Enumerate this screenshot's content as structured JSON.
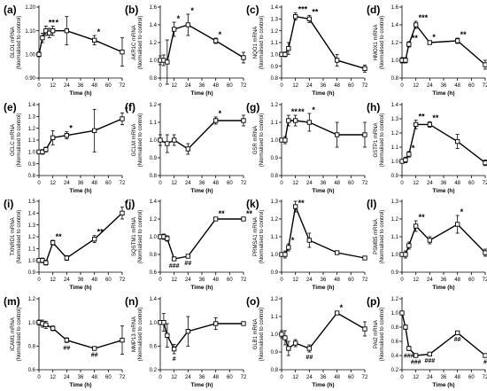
{
  "figure": {
    "xlabel": "Time (h)",
    "ylabel_unit": "(Normalised to control)"
  },
  "chart_data": [
    {
      "panel": "(a)",
      "type": "line",
      "ylabel": "GLO1 mRNA",
      "ylim": [
        0.9,
        1.2
      ],
      "yticks": [
        0.9,
        1.0,
        1.1,
        1.2
      ],
      "yticklabels": [
        "0.90",
        "1.00",
        "1.10",
        "1.20"
      ],
      "xticks": [
        0,
        12,
        24,
        36,
        48,
        60,
        72
      ],
      "x": [
        0,
        3,
        6,
        9,
        12,
        24,
        48,
        72
      ],
      "y": [
        1.0,
        1.07,
        1.1,
        1.09,
        1.1,
        1.1,
        1.06,
        1.01
      ],
      "err": [
        0.01,
        0.02,
        0.02,
        0.02,
        0.02,
        0.06,
        0.02,
        0.06
      ],
      "annotations": [
        {
          "x": 6,
          "text": "**"
        },
        {
          "x": 12,
          "text": "*"
        },
        {
          "x": 48,
          "text": "*"
        }
      ]
    },
    {
      "panel": "(b)",
      "type": "line",
      "ylabel": "AKR1C mRNA",
      "ylim": [
        0.8,
        1.6
      ],
      "yticks": [
        0.8,
        1.0,
        1.2,
        1.4,
        1.6
      ],
      "yticklabels": [
        "0.8",
        "1.0",
        "1.2",
        "1.4",
        "1.6"
      ],
      "xticks": [
        0,
        12,
        24,
        36,
        48,
        60,
        72
      ],
      "x": [
        0,
        3,
        6,
        12,
        24,
        48,
        72
      ],
      "y": [
        1.0,
        1.0,
        0.98,
        1.35,
        1.4,
        1.22,
        1.03
      ],
      "err": [
        0.05,
        0.06,
        0.25,
        0.08,
        0.12,
        0.03,
        0.06
      ],
      "annotations": [
        {
          "x": 12,
          "text": "*"
        },
        {
          "x": 24,
          "text": "*"
        },
        {
          "x": 48,
          "text": "*"
        }
      ]
    },
    {
      "panel": "(c)",
      "type": "line",
      "ylabel": "NQO1 mRNA",
      "ylim": [
        0.8,
        1.4
      ],
      "yticks": [
        0.8,
        0.9,
        1.0,
        1.1,
        1.2,
        1.3,
        1.4
      ],
      "yticklabels": [
        "0.8",
        "0.9",
        "1.0",
        "1.1",
        "1.2",
        "1.3",
        "1.4"
      ],
      "xticks": [
        0,
        12,
        24,
        36,
        48,
        60,
        72
      ],
      "x": [
        0,
        3,
        6,
        12,
        24,
        48,
        72
      ],
      "y": [
        1.0,
        1.0,
        1.05,
        1.32,
        1.3,
        0.95,
        0.88
      ],
      "err": [
        0.01,
        0.02,
        0.05,
        0.03,
        0.03,
        0.05,
        0.03
      ],
      "annotations": [
        {
          "x": 12,
          "text": "***"
        },
        {
          "x": 24,
          "text": "**"
        }
      ]
    },
    {
      "panel": "(d)",
      "type": "line",
      "ylabel": "HMOX1 mRNA",
      "ylim": [
        0.8,
        1.6
      ],
      "yticks": [
        0.8,
        1.0,
        1.2,
        1.4,
        1.6
      ],
      "yticklabels": [
        "0.8",
        "1.0",
        "1.2",
        "1.4",
        "1.6"
      ],
      "xticks": [
        0,
        12,
        24,
        36,
        48,
        60,
        72
      ],
      "x": [
        0,
        3,
        6,
        12,
        24,
        48,
        72
      ],
      "y": [
        1.0,
        1.0,
        1.18,
        1.4,
        1.2,
        1.22,
        0.95
      ],
      "err": [
        0.03,
        0.03,
        0.03,
        0.04,
        0.02,
        0.03,
        0.05
      ],
      "annotations": [
        {
          "x": 6,
          "text": "**"
        },
        {
          "x": 12,
          "text": "***"
        },
        {
          "x": 24,
          "text": "*"
        },
        {
          "x": 48,
          "text": "**"
        }
      ]
    },
    {
      "panel": "(e)",
      "type": "line",
      "ylabel": "GCLC mRNA",
      "ylim": [
        0.8,
        1.4
      ],
      "yticks": [
        0.8,
        0.9,
        1.0,
        1.1,
        1.2,
        1.3,
        1.4
      ],
      "yticklabels": [
        "0.8",
        "0.9",
        "1.0",
        "1.1",
        "1.2",
        "1.3",
        "1.4"
      ],
      "xticks": [
        0,
        12,
        24,
        36,
        48,
        60,
        72
      ],
      "x": [
        0,
        3,
        6,
        12,
        24,
        48,
        72
      ],
      "y": [
        1.0,
        1.0,
        1.02,
        1.12,
        1.14,
        1.18,
        1.28
      ],
      "err": [
        0.01,
        0.02,
        0.02,
        0.06,
        0.03,
        0.18,
        0.05
      ],
      "annotations": [
        {
          "x": 24,
          "text": "*"
        },
        {
          "x": 72,
          "text": "*"
        }
      ]
    },
    {
      "panel": "(f)",
      "type": "line",
      "ylabel": "GCLM mRNA",
      "ylim": [
        0.8,
        1.2
      ],
      "yticks": [
        0.8,
        0.9,
        1.0,
        1.1,
        1.2
      ],
      "yticklabels": [
        "0.8",
        "0.9",
        "1.0",
        "1.1",
        "1.2"
      ],
      "xticks": [
        0,
        12,
        24,
        36,
        48,
        60,
        72
      ],
      "x": [
        0,
        6,
        12,
        24,
        48,
        72
      ],
      "y": [
        1.0,
        0.98,
        1.0,
        0.95,
        1.11,
        1.11
      ],
      "err": [
        0.03,
        0.05,
        0.03,
        0.03,
        0.02,
        0.03
      ],
      "annotations": [
        {
          "x": 48,
          "text": "*"
        }
      ]
    },
    {
      "panel": "(g)",
      "type": "line",
      "ylabel": "GSR mRNA",
      "ylim": [
        0.8,
        1.2
      ],
      "yticks": [
        0.8,
        0.9,
        1.0,
        1.1,
        1.2
      ],
      "yticklabels": [
        "0.8",
        "0.9",
        "1.0",
        "1.1",
        "1.2"
      ],
      "xticks": [
        0,
        12,
        24,
        36,
        48,
        60,
        72
      ],
      "x": [
        0,
        3,
        6,
        12,
        24,
        48,
        72
      ],
      "y": [
        1.0,
        1.0,
        1.11,
        1.11,
        1.1,
        1.03,
        1.03
      ],
      "err": [
        0.01,
        0.02,
        0.03,
        0.03,
        0.05,
        0.07,
        0.07
      ],
      "annotations": [
        {
          "x": 6,
          "text": "**"
        },
        {
          "x": 12,
          "text": "**"
        },
        {
          "x": 24,
          "text": "*"
        }
      ]
    },
    {
      "panel": "(h)",
      "type": "line",
      "ylabel": "GSTP1 mRNA",
      "ylim": [
        0.9,
        1.4
      ],
      "yticks": [
        0.9,
        1.0,
        1.1,
        1.2,
        1.3,
        1.4
      ],
      "yticklabels": [
        "0.9",
        "1.0",
        "1.1",
        "1.2",
        "1.3",
        "1.4"
      ],
      "xticks": [
        0,
        12,
        24,
        36,
        48,
        60,
        72
      ],
      "x": [
        0,
        3,
        6,
        12,
        24,
        48,
        72
      ],
      "y": [
        1.0,
        1.01,
        1.05,
        1.26,
        1.26,
        1.14,
        0.99
      ],
      "err": [
        0.01,
        0.02,
        0.02,
        0.03,
        0.02,
        0.05,
        0.02
      ],
      "annotations": [
        {
          "x": 6,
          "text": "*"
        },
        {
          "x": 12,
          "text": "**"
        },
        {
          "x": 24,
          "text": "**"
        }
      ]
    },
    {
      "panel": "(i)",
      "type": "line",
      "ylabel": "TXNRD1 mRNA",
      "ylim": [
        0.9,
        1.5
      ],
      "yticks": [
        0.9,
        1.0,
        1.1,
        1.2,
        1.3,
        1.4,
        1.5
      ],
      "yticklabels": [
        "0.9",
        "1.0",
        "1.1",
        "1.2",
        "1.3",
        "1.4",
        "1.5"
      ],
      "xticks": [
        0,
        12,
        24,
        36,
        48,
        60,
        72
      ],
      "x": [
        0,
        3,
        6,
        12,
        24,
        48,
        72
      ],
      "y": [
        1.0,
        1.0,
        0.98,
        1.15,
        1.02,
        1.18,
        1.4
      ],
      "err": [
        0.01,
        0.02,
        0.02,
        0.02,
        0.02,
        0.03,
        0.05
      ],
      "annotations": [
        {
          "x": 12,
          "text": "**"
        },
        {
          "x": 48,
          "text": "**"
        },
        {
          "x": 72,
          "text": "*"
        }
      ]
    },
    {
      "panel": "(j)",
      "type": "line",
      "ylabel": "SQSTM1 mRNA",
      "ylim": [
        0.6,
        1.4
      ],
      "yticks": [
        0.6,
        0.8,
        1.0,
        1.2,
        1.4
      ],
      "yticklabels": [
        "0.6",
        "0.8",
        "1.0",
        "1.2",
        "1.4"
      ],
      "xticks": [
        0,
        12,
        24,
        36,
        48,
        60,
        72
      ],
      "x": [
        0,
        3,
        6,
        12,
        24,
        48,
        72
      ],
      "y": [
        1.0,
        1.0,
        0.98,
        0.75,
        0.78,
        1.2,
        1.2
      ],
      "err": [
        0.01,
        0.03,
        0.03,
        0.02,
        0.02,
        0.02,
        0.02
      ],
      "annotations": [
        {
          "x": 12,
          "text": "###"
        },
        {
          "x": 24,
          "text": "##"
        },
        {
          "x": 48,
          "text": "**"
        },
        {
          "x": 72,
          "text": "**"
        }
      ]
    },
    {
      "panel": "(k)",
      "type": "line",
      "ylabel": "PRMSA1 mRNA",
      "ylim": [
        0.9,
        1.3
      ],
      "yticks": [
        0.9,
        1.0,
        1.1,
        1.2,
        1.3
      ],
      "yticklabels": [
        "0.9",
        "1.0",
        "1.1",
        "1.2",
        "1.3"
      ],
      "xticks": [
        0,
        12,
        24,
        36,
        48,
        60,
        72
      ],
      "x": [
        0,
        3,
        6,
        12,
        24,
        48,
        72
      ],
      "y": [
        1.0,
        1.0,
        1.04,
        1.27,
        1.08,
        1.01,
        0.98
      ],
      "err": [
        0.01,
        0.02,
        0.02,
        0.03,
        0.04,
        0.01,
        0.01
      ],
      "annotations": [
        {
          "x": 6,
          "text": "*"
        },
        {
          "x": 12,
          "text": "**"
        }
      ]
    },
    {
      "panel": "(l)",
      "type": "line",
      "ylabel": "PSMB5 mRNA",
      "ylim": [
        0.9,
        1.3
      ],
      "yticks": [
        0.9,
        1.0,
        1.1,
        1.2,
        1.3
      ],
      "yticklabels": [
        "0.9",
        "1.0",
        "1.1",
        "1.2",
        "1.3"
      ],
      "xticks": [
        0,
        12,
        24,
        36,
        48,
        60,
        72
      ],
      "x": [
        0,
        3,
        6,
        12,
        24,
        48,
        72
      ],
      "y": [
        1.0,
        1.0,
        1.05,
        1.16,
        1.08,
        1.17,
        1.01
      ],
      "err": [
        0.01,
        0.02,
        0.02,
        0.03,
        0.02,
        0.05,
        0.02
      ],
      "annotations": [
        {
          "x": 12,
          "text": "**"
        },
        {
          "x": 48,
          "text": "*"
        }
      ]
    },
    {
      "panel": "(m)",
      "type": "line",
      "ylabel": "ICAM1 mRNA",
      "ylim": [
        0.6,
        1.2
      ],
      "yticks": [
        0.6,
        0.8,
        1.0,
        1.2
      ],
      "yticklabels": [
        "0.6",
        "0.8",
        "1.0",
        "1.2"
      ],
      "xticks": [
        0,
        12,
        24,
        36,
        48,
        60,
        72
      ],
      "x": [
        0,
        3,
        6,
        12,
        24,
        48,
        72
      ],
      "y": [
        1.0,
        0.99,
        0.98,
        0.95,
        0.85,
        0.78,
        0.85
      ],
      "err": [
        0.02,
        0.03,
        0.03,
        0.02,
        0.02,
        0.01,
        0.12
      ],
      "annotations": [
        {
          "x": 24,
          "text": "##"
        },
        {
          "x": 48,
          "text": "##"
        }
      ]
    },
    {
      "panel": "(n)",
      "type": "line",
      "ylabel": "MMP13 mRNA",
      "ylim": [
        0.2,
        1.4
      ],
      "yticks": [
        0.2,
        0.6,
        1.0,
        1.4
      ],
      "yticklabels": [
        "0.2",
        "0.6",
        "1.0",
        "1.4"
      ],
      "xticks": [
        0,
        12,
        24,
        36,
        48,
        60,
        72
      ],
      "x": [
        0,
        3,
        6,
        12,
        24,
        48,
        72
      ],
      "y": [
        1.0,
        1.0,
        0.78,
        0.55,
        0.85,
        0.98,
        0.98
      ],
      "err": [
        0.02,
        0.15,
        0.2,
        0.08,
        0.25,
        0.1,
        0.03
      ],
      "annotations": [
        {
          "x": 12,
          "text": "#"
        }
      ]
    },
    {
      "panel": "(o)",
      "type": "line",
      "ylabel": "GLB1 mRNA",
      "ylim": [
        0.8,
        1.2
      ],
      "yticks": [
        0.8,
        0.9,
        1.0,
        1.1,
        1.2
      ],
      "yticklabels": [
        "0.8",
        "0.9",
        "1.0",
        "1.1",
        "1.2"
      ],
      "xticks": [
        0,
        12,
        24,
        36,
        48,
        60,
        72
      ],
      "x": [
        0,
        3,
        6,
        12,
        24,
        48,
        72
      ],
      "y": [
        1.0,
        0.98,
        0.92,
        0.95,
        0.92,
        1.12,
        1.03
      ],
      "err": [
        0.02,
        0.04,
        0.04,
        0.02,
        0.02,
        0.01,
        0.04
      ],
      "annotations": [
        {
          "x": 24,
          "text": "##"
        },
        {
          "x": 48,
          "text": "*"
        }
      ]
    },
    {
      "panel": "(p)",
      "type": "line",
      "ylabel": "PAI2 mRNA",
      "ylim": [
        0.2,
        1.2
      ],
      "yticks": [
        0.2,
        0.4,
        0.6,
        0.8,
        1.0,
        1.2
      ],
      "yticklabels": [
        "0.2",
        "0.4",
        "0.6",
        "0.8",
        "1.0",
        "1.2"
      ],
      "xticks": [
        0,
        12,
        24,
        36,
        48,
        60,
        72
      ],
      "x": [
        0,
        3,
        6,
        12,
        24,
        48,
        72
      ],
      "y": [
        1.0,
        0.8,
        0.5,
        0.4,
        0.42,
        0.72,
        0.4
      ],
      "err": [
        0.02,
        0.03,
        0.03,
        0.02,
        0.02,
        0.02,
        0.02
      ],
      "annotations": [
        {
          "x": 6,
          "text": "###"
        },
        {
          "x": 12,
          "text": "###"
        },
        {
          "x": 24,
          "text": "###"
        },
        {
          "x": 48,
          "text": "##"
        },
        {
          "x": 72,
          "text": "#"
        }
      ]
    }
  ]
}
